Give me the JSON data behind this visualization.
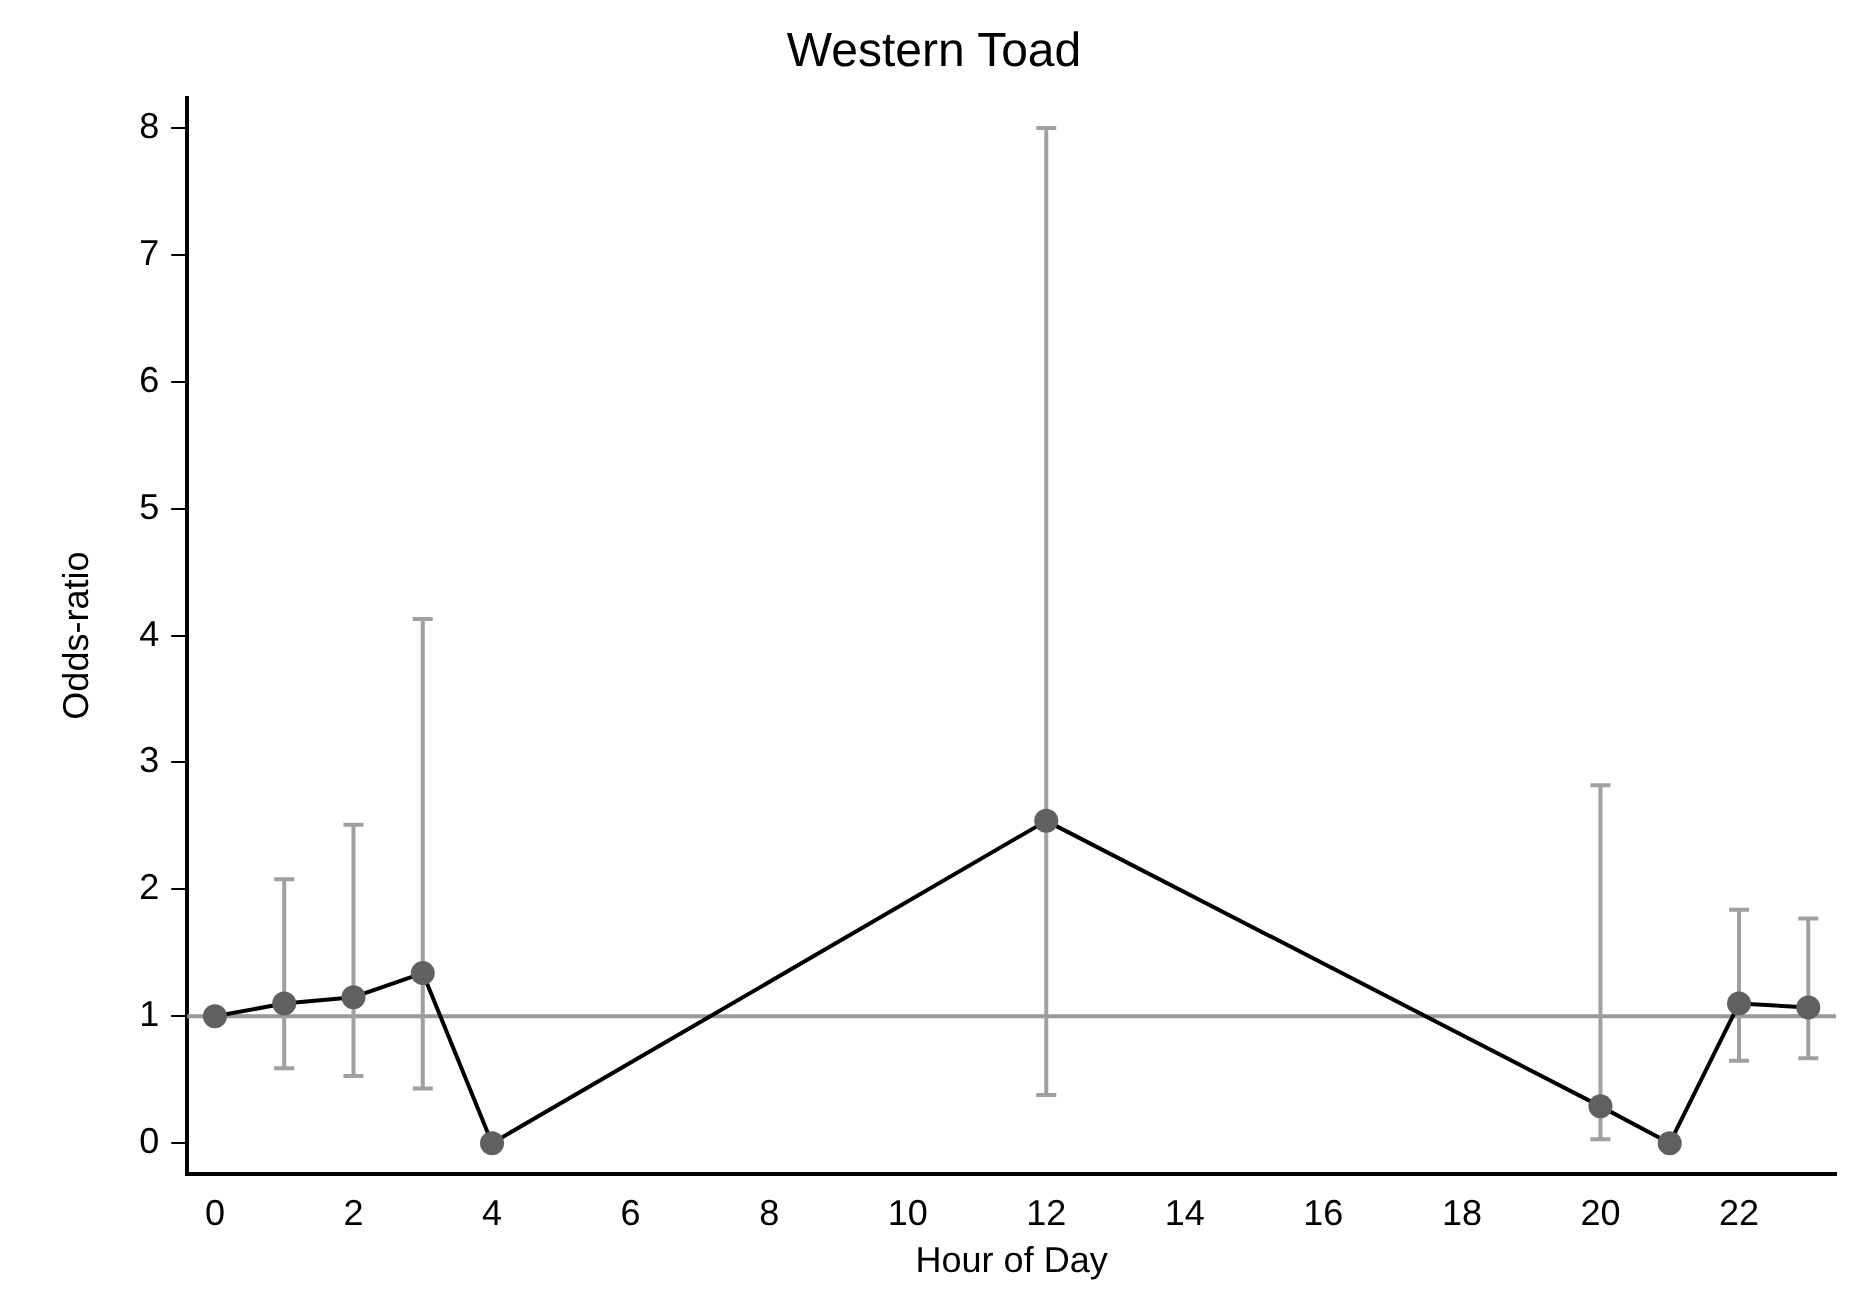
{
  "chart_data": {
    "type": "line",
    "title": "Western Toad",
    "xlabel": "Hour of Day",
    "ylabel": "Odds-ratio",
    "x": [
      0,
      1,
      2,
      3,
      4,
      12,
      20,
      21,
      22,
      23
    ],
    "series": [
      {
        "color": "#000000",
        "values": [
          1,
          1.1,
          1.15,
          1.34,
          0,
          2.54,
          0.29,
          0,
          1.1,
          1.07
        ],
        "errors": [
          null,
          [
            0.59,
            2.08
          ],
          [
            0.53,
            2.51
          ],
          [
            0.43,
            4.13
          ],
          null,
          [
            0.38,
            8.0
          ],
          [
            0.03,
            2.82
          ],
          null,
          [
            0.65,
            1.84
          ],
          [
            0.67,
            1.77
          ]
        ]
      }
    ],
    "marker": "circle",
    "grid": false,
    "legend": false,
    "xlim": [
      -0.4,
      23.4
    ],
    "xticks": [
      0,
      2,
      4,
      6,
      8,
      10,
      12,
      14,
      16,
      18,
      20,
      22
    ],
    "ylim": [
      -0.24,
      8.24
    ],
    "yticks": [
      0,
      1,
      2,
      3,
      4,
      5,
      6,
      7,
      8
    ],
    "ref_lines": [
      {
        "axis": "y",
        "value": 1,
        "color": "#999999"
      }
    ]
  }
}
